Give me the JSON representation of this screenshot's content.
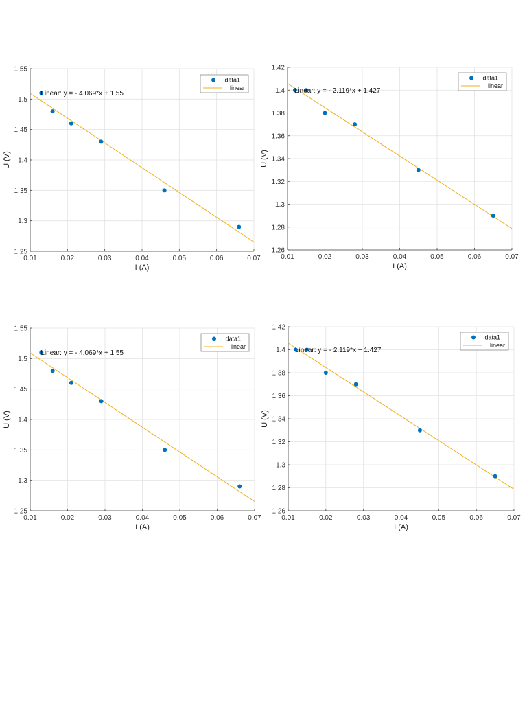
{
  "colors": {
    "data": "#0072bd",
    "fit": "#edb120",
    "grid": "#e2e2e2",
    "axis": "#404040"
  },
  "chart_data": [
    {
      "type": "scatter",
      "title": "",
      "xlabel": "I (A)",
      "ylabel": "U (V)",
      "xlim": [
        0.01,
        0.07
      ],
      "ylim": [
        1.25,
        1.55
      ],
      "xticks": [
        0.01,
        0.02,
        0.03,
        0.04,
        0.05,
        0.06,
        0.07
      ],
      "yticks": [
        1.25,
        1.3,
        1.35,
        1.4,
        1.45,
        1.5,
        1.55
      ],
      "xtick_labels": [
        "0.01",
        "0.02",
        "0.03",
        "0.04",
        "0.05",
        "0.06",
        "0.07"
      ],
      "ytick_labels": [
        "1.25",
        "1.3",
        "1.35",
        "1.4",
        "1.45",
        "1.5",
        "1.55"
      ],
      "grid": true,
      "legend_position": "top-right",
      "series": [
        {
          "name": "data1",
          "kind": "scatter",
          "x": [
            0.013,
            0.016,
            0.021,
            0.029,
            0.046,
            0.066
          ],
          "y": [
            1.51,
            1.48,
            1.46,
            1.43,
            1.35,
            1.29
          ]
        },
        {
          "name": "linear",
          "kind": "line",
          "slope": -4.069,
          "intercept": 1.55
        }
      ],
      "annotation": "Linear:  y = - 4.069*x + 1.55"
    },
    {
      "type": "scatter",
      "title": "",
      "xlabel": "I (A)",
      "ylabel": "U (V)",
      "xlim": [
        0.01,
        0.07
      ],
      "ylim": [
        1.26,
        1.42
      ],
      "xticks": [
        0.01,
        0.02,
        0.03,
        0.04,
        0.05,
        0.06,
        0.07
      ],
      "yticks": [
        1.26,
        1.28,
        1.3,
        1.32,
        1.34,
        1.36,
        1.38,
        1.4,
        1.42
      ],
      "xtick_labels": [
        "0.01",
        "0.02",
        "0.03",
        "0.04",
        "0.05",
        "0.06",
        "0.07"
      ],
      "ytick_labels": [
        "1.26",
        "1.28",
        "1.3",
        "1.32",
        "1.34",
        "1.36",
        "1.38",
        "1.4",
        "1.42"
      ],
      "grid": true,
      "legend_position": "top-right",
      "series": [
        {
          "name": "data1",
          "kind": "scatter",
          "x": [
            0.012,
            0.015,
            0.02,
            0.028,
            0.045,
            0.065
          ],
          "y": [
            1.4,
            1.4,
            1.38,
            1.37,
            1.33,
            1.29
          ]
        },
        {
          "name": "linear",
          "kind": "line",
          "slope": -2.119,
          "intercept": 1.427
        }
      ],
      "annotation": "Linear:  y = - 2.119*x + 1.427"
    },
    {
      "type": "scatter",
      "title": "",
      "xlabel": "I (A)",
      "ylabel": "U (V)",
      "xlim": [
        0.01,
        0.07
      ],
      "ylim": [
        1.25,
        1.55
      ],
      "xticks": [
        0.01,
        0.02,
        0.03,
        0.04,
        0.05,
        0.06,
        0.07
      ],
      "yticks": [
        1.25,
        1.3,
        1.35,
        1.4,
        1.45,
        1.5,
        1.55
      ],
      "xtick_labels": [
        "0.01",
        "0.02",
        "0.03",
        "0.04",
        "0.05",
        "0.06",
        "0.07"
      ],
      "ytick_labels": [
        "1.25",
        "1.3",
        "1.35",
        "1.4",
        "1.45",
        "1.5",
        "1.55"
      ],
      "grid": true,
      "legend_position": "top-right",
      "series": [
        {
          "name": "data1",
          "kind": "scatter",
          "x": [
            0.013,
            0.016,
            0.021,
            0.029,
            0.046,
            0.066
          ],
          "y": [
            1.51,
            1.48,
            1.46,
            1.43,
            1.35,
            1.29
          ]
        },
        {
          "name": "linear",
          "kind": "line",
          "slope": -4.069,
          "intercept": 1.55
        }
      ],
      "annotation": "Linear:  y = - 4.069*x + 1.55"
    },
    {
      "type": "scatter",
      "title": "",
      "xlabel": "I (A)",
      "ylabel": "U (V)",
      "xlim": [
        0.01,
        0.07
      ],
      "ylim": [
        1.26,
        1.42
      ],
      "xticks": [
        0.01,
        0.02,
        0.03,
        0.04,
        0.05,
        0.06,
        0.07
      ],
      "yticks": [
        1.26,
        1.28,
        1.3,
        1.32,
        1.34,
        1.36,
        1.38,
        1.4,
        1.42
      ],
      "xtick_labels": [
        "0.01",
        "0.02",
        "0.03",
        "0.04",
        "0.05",
        "0.06",
        "0.07"
      ],
      "ytick_labels": [
        "1.26",
        "1.28",
        "1.3",
        "1.32",
        "1.34",
        "1.36",
        "1.38",
        "1.4",
        "1.42"
      ],
      "grid": true,
      "legend_position": "top-right",
      "series": [
        {
          "name": "data1",
          "kind": "scatter",
          "x": [
            0.012,
            0.015,
            0.02,
            0.028,
            0.045,
            0.065
          ],
          "y": [
            1.4,
            1.4,
            1.38,
            1.37,
            1.33,
            1.29
          ]
        },
        {
          "name": "linear",
          "kind": "line",
          "slope": -2.119,
          "intercept": 1.427
        }
      ],
      "annotation": "Linear:  y = - 2.119*x + 1.427"
    }
  ]
}
